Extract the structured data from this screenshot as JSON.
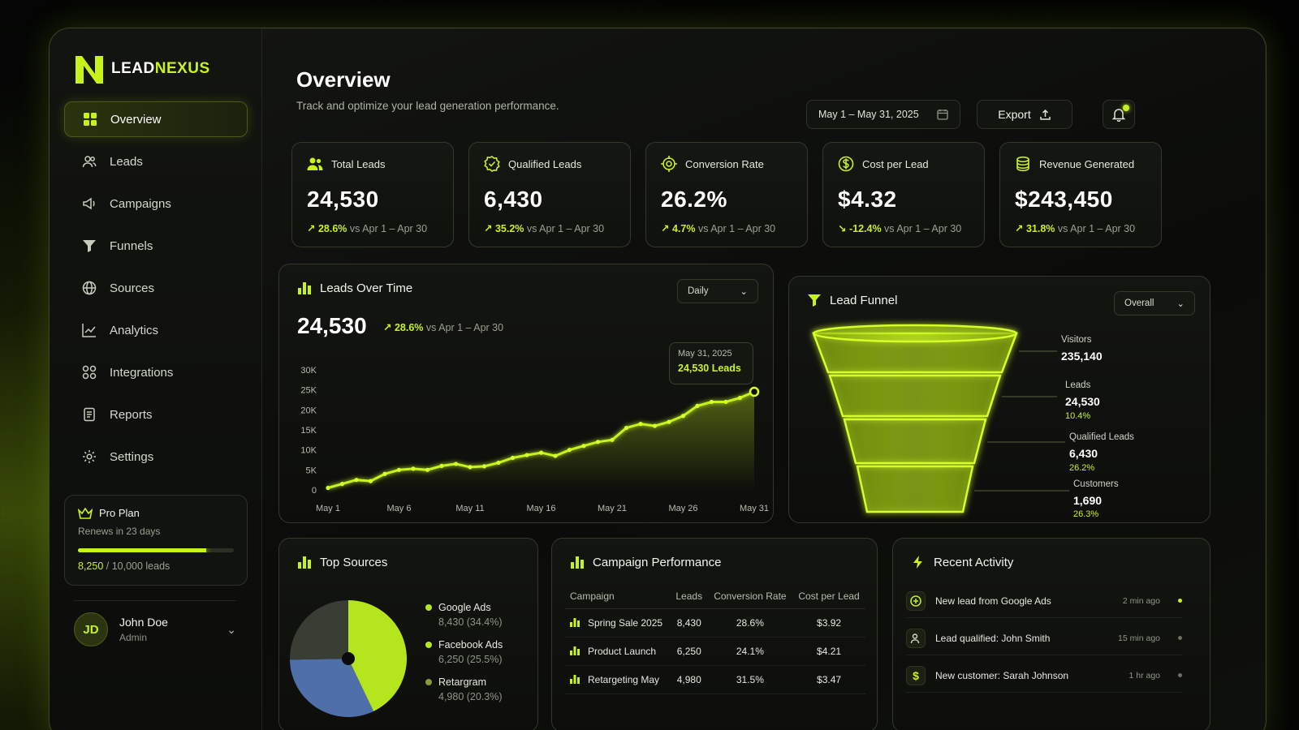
{
  "brand": {
    "name_part1": "LEAD",
    "name_part2": "NEXUS",
    "accent_color": "#c6f31b"
  },
  "sidebar": {
    "items": [
      {
        "label": "Overview",
        "icon": "grid-icon",
        "active": true
      },
      {
        "label": "Leads",
        "icon": "users-icon"
      },
      {
        "label": "Campaigns",
        "icon": "megaphone-icon"
      },
      {
        "label": "Funnels",
        "icon": "funnel-icon"
      },
      {
        "label": "Sources",
        "icon": "globe-icon"
      },
      {
        "label": "Analytics",
        "icon": "chart-line-icon"
      },
      {
        "label": "Integrations",
        "icon": "integrations-icon"
      },
      {
        "label": "Reports",
        "icon": "report-icon"
      },
      {
        "label": "Settings",
        "icon": "gear-icon"
      }
    ],
    "plan": {
      "title": "Pro Plan",
      "renews": "Renews in 23 days",
      "used": "8,250",
      "total": " / 10,000 leads",
      "usage_fraction": 0.825
    },
    "user": {
      "initials": "JD",
      "name": "John Doe",
      "role": "Admin"
    }
  },
  "header": {
    "title": "Overview",
    "subtitle": "Track and optimize your lead generation performance.",
    "date_range": "May 1 – May 31, 2025",
    "export_label": "Export"
  },
  "kpis": [
    {
      "label": "Total Leads",
      "value": "24,530",
      "delta": "28.6%",
      "compare": "vs Apr 1 – Apr 30",
      "icon": "users-icon",
      "direction": "up"
    },
    {
      "label": "Qualified Leads",
      "value": "6,430",
      "delta": "35.2%",
      "compare": "vs Apr 1 – Apr 30",
      "icon": "badge-check-icon",
      "direction": "up"
    },
    {
      "label": "Conversion Rate",
      "value": "26.2%",
      "delta": "4.7%",
      "compare": "vs Apr 1 – Apr 30",
      "icon": "target-icon",
      "direction": "up"
    },
    {
      "label": "Cost per Lead",
      "value": "$4.32",
      "delta": "-12.4%",
      "compare": "vs Apr 1 – Apr 30",
      "icon": "dollar-icon",
      "direction": "down"
    },
    {
      "label": "Revenue Generated",
      "value": "$243,450",
      "delta": "31.8%",
      "compare": "vs Apr 1 – Apr 30",
      "icon": "coins-icon",
      "direction": "up"
    }
  ],
  "leads_over_time": {
    "title": "Leads Over Time",
    "select": "Daily",
    "value": "24,530",
    "delta": "28.6%",
    "compare": "vs Apr 1 – Apr 30",
    "tooltip_date": "May 31, 2025",
    "tooltip_value": "24,530 Leads"
  },
  "chart_data": {
    "type": "area",
    "x": [
      "May 1",
      "May 2",
      "May 3",
      "May 4",
      "May 5",
      "May 6",
      "May 7",
      "May 8",
      "May 9",
      "May 10",
      "May 11",
      "May 12",
      "May 13",
      "May 14",
      "May 15",
      "May 16",
      "May 17",
      "May 18",
      "May 19",
      "May 20",
      "May 21",
      "May 22",
      "May 23",
      "May 24",
      "May 25",
      "May 26",
      "May 27",
      "May 28",
      "May 29",
      "May 30",
      "May 31"
    ],
    "values": [
      500,
      1500,
      2500,
      2200,
      4000,
      5000,
      5300,
      5000,
      6000,
      6500,
      5700,
      5900,
      6800,
      8000,
      8700,
      9300,
      8500,
      10000,
      11000,
      12000,
      12500,
      15500,
      16500,
      16000,
      17000,
      18500,
      21000,
      22000,
      22000,
      23000,
      24530
    ],
    "x_tick_labels": [
      "May 1",
      "May 6",
      "May 11",
      "May 16",
      "May 21",
      "May 26",
      "May 31"
    ],
    "y_tick_labels": [
      "30K",
      "25K",
      "20K",
      "15K",
      "10K",
      "5K",
      "0"
    ],
    "ylim": [
      0,
      30000
    ],
    "grid": false,
    "series_color": "#c6f31b"
  },
  "funnel": {
    "title": "Lead Funnel",
    "select": "Overall",
    "stages": [
      {
        "label": "Visitors",
        "value": "235,140",
        "pct": ""
      },
      {
        "label": "Leads",
        "value": "24,530",
        "pct": "10.4%"
      },
      {
        "label": "Qualified Leads",
        "value": "6,430",
        "pct": "26.2%"
      },
      {
        "label": "Customers",
        "value": "1,690",
        "pct": "26.3%"
      }
    ]
  },
  "top_sources": {
    "title": "Top Sources",
    "items": [
      {
        "name": "Google Ads",
        "detail": "8,430 (34.4%)",
        "share": 34.4,
        "color": "#b5e61d"
      },
      {
        "name": "Facebook Ads",
        "detail": "6,250 (25.5%)",
        "share": 25.5,
        "color": "#4f6fa8"
      },
      {
        "name": "Retargram",
        "detail": "4,980 (20.3%)",
        "share": 20.3,
        "color": "#3a3d33"
      }
    ]
  },
  "campaigns": {
    "title": "Campaign Performance",
    "columns": [
      "Campaign",
      "Leads",
      "Conversion Rate",
      "Cost per Lead"
    ],
    "rows": [
      [
        "Spring Sale 2025",
        "8,430",
        "28.6%",
        "$3.92"
      ],
      [
        "Product Launch",
        "6,250",
        "24.1%",
        "$4.21"
      ],
      [
        "Retargeting May",
        "4,980",
        "31.5%",
        "$3.47"
      ]
    ]
  },
  "activity": {
    "title": "Recent Activity",
    "items": [
      {
        "text": "New lead from Google Ads",
        "time": "2 min ago",
        "icon": "plus-circle-icon"
      },
      {
        "text": "Lead qualified: John Smith",
        "time": "15 min ago",
        "icon": "user-check-icon"
      },
      {
        "text": "New customer: Sarah Johnson",
        "time": "1 hr ago",
        "icon": "dollar-icon"
      }
    ]
  }
}
